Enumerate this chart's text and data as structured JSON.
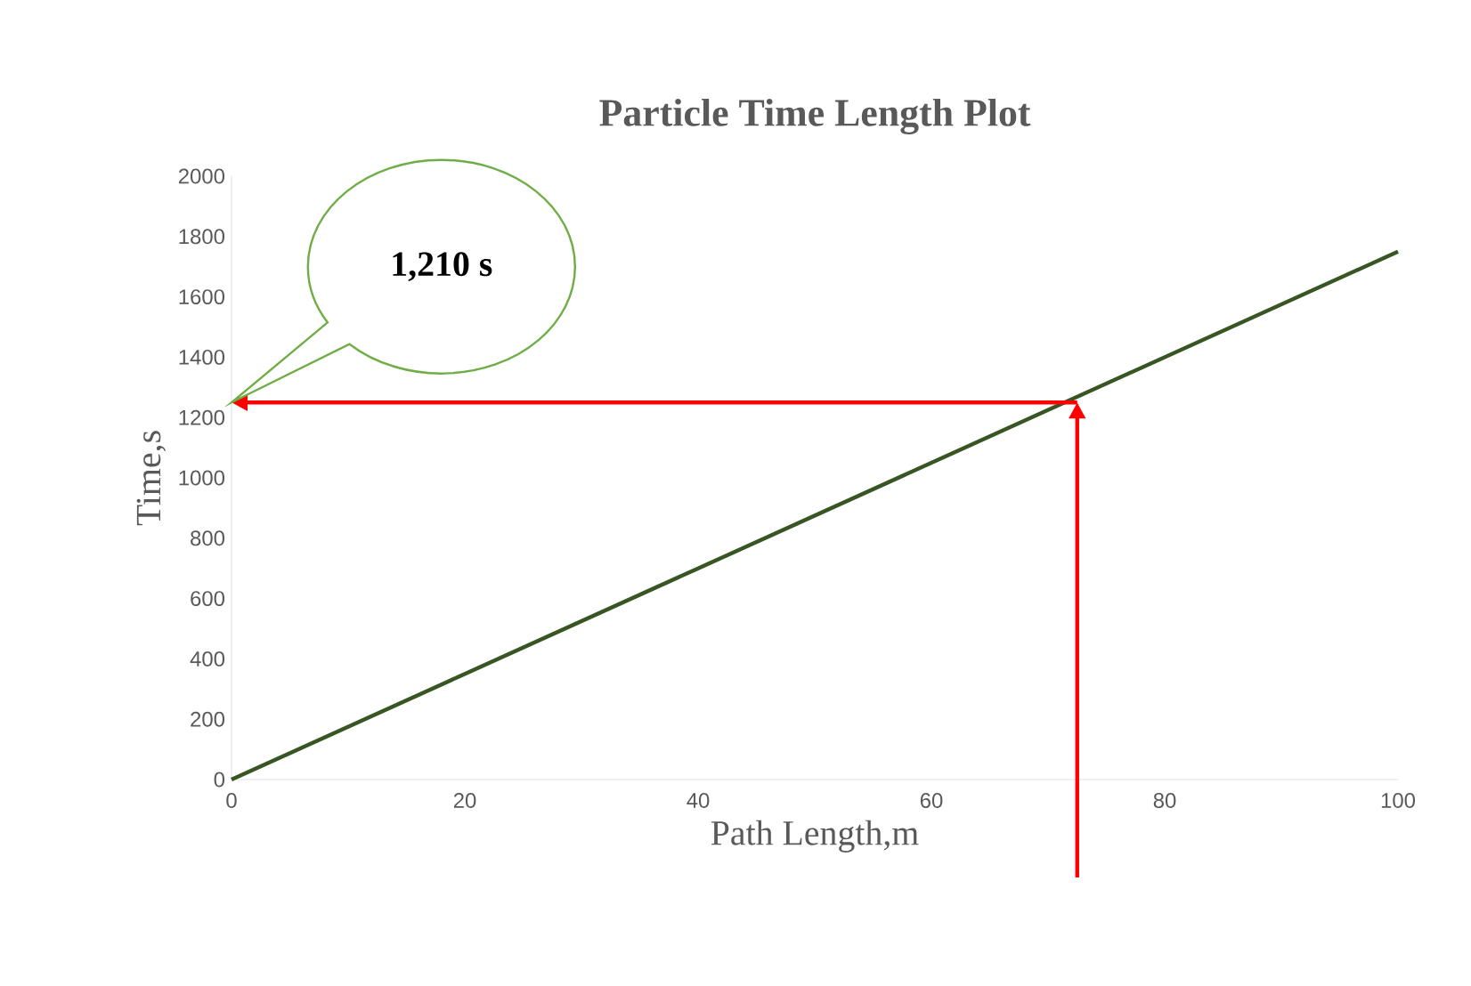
{
  "chart_data": {
    "type": "line",
    "title": "Particle Time Length Plot",
    "xlabel": "Path Length,m",
    "ylabel": "Time,s",
    "x": [
      0,
      40,
      100
    ],
    "series": [
      {
        "color": "#375623",
        "values": [
          0,
          700,
          1750
        ]
      }
    ],
    "xlim": [
      0,
      100
    ],
    "xticks": [
      0,
      20,
      40,
      60,
      80,
      100
    ],
    "ylim": [
      0,
      2000
    ],
    "yticks": [
      0,
      200,
      400,
      600,
      800,
      1000,
      1200,
      1400,
      1600,
      1800,
      2000
    ],
    "ref_lines": [
      {
        "axis": "x",
        "value": 72.5,
        "color": "#ff0000"
      },
      {
        "axis": "y",
        "value": 1250,
        "color": "#ff0000"
      }
    ],
    "annotations": [
      "1,210 s"
    ],
    "grid": false,
    "marker": "none",
    "line_style": "solid"
  }
}
